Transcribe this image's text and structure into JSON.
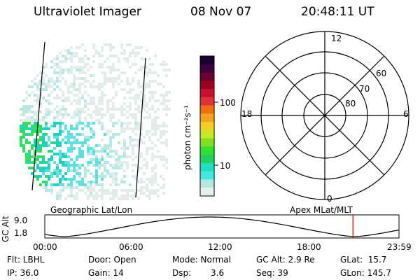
{
  "header": {
    "title": "Ultraviolet Imager",
    "date": "08 Nov 07",
    "time": "20:48:11 UT"
  },
  "colorbar": {
    "unit_label": "photon cm⁻²s⁻¹",
    "ticks": [
      "100",
      "10"
    ],
    "scale": "log",
    "colors": [
      "#1a0030",
      "#3a0040",
      "#6a0030",
      "#9a0020",
      "#c8102e",
      "#e0303a",
      "#f07010",
      "#f6a020",
      "#f5d020",
      "#c8e820",
      "#80e020",
      "#30e030",
      "#20d060",
      "#20e0c0",
      "#40e8e0",
      "#b0e8e0",
      "#e8f0ee"
    ]
  },
  "polar_plot": {
    "labels": {
      "top": "12",
      "bottom": "0",
      "left": "18",
      "right": "6"
    },
    "latitude_rings": [
      "60",
      "70",
      "80"
    ]
  },
  "orbit_plot": {
    "left_title": "Geographic Lat/Lon",
    "right_title": "Apex MLat/MLT",
    "y_axis_label": "GC Alt",
    "y_ticks": [
      "9.0",
      "1.8"
    ],
    "x_ticks": [
      "00:00",
      "06:00",
      "12:00",
      "18:00",
      "23:59"
    ],
    "current_time_marker_color": "#cc0000",
    "current_time_fraction": 0.87
  },
  "info": {
    "filter": "Flt: LBHL",
    "ip": "IP: 36.0",
    "door": "Door: Open",
    "gain": "Gain: 14",
    "mode": "Mode: Normal",
    "dsp_label": "Dsp:",
    "dsp_value": "3.6",
    "gc_alt": "GC Alt: 2.9 Re",
    "seq": "Seq: 39",
    "glat": "GLat:  15.7",
    "glon": "GLon: 145.7"
  }
}
